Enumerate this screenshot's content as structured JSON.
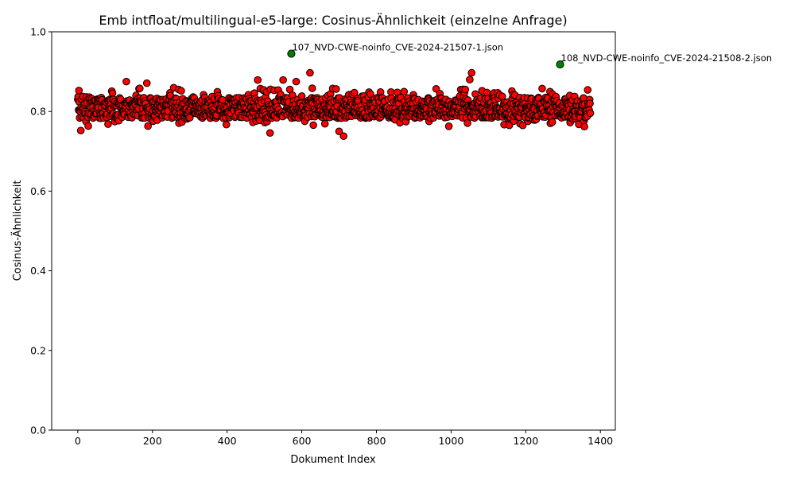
{
  "chart_data": {
    "type": "scatter",
    "title": "Emb intfloat/multilingual-e5-large: Cosinus-Ähnlichkeit (einzelne Anfrage)",
    "xlabel": "Dokument Index",
    "ylabel": "Cosinus-Ähnlichkeit",
    "xlim": [
      -70,
      1440
    ],
    "ylim": [
      0.0,
      1.0
    ],
    "xticks": [
      0,
      200,
      400,
      600,
      800,
      1000,
      1200,
      1400
    ],
    "yticks": [
      0.0,
      0.2,
      0.4,
      0.6,
      0.8,
      1.0
    ],
    "xtick_labels": [
      "0",
      "200",
      "400",
      "600",
      "800",
      "1000",
      "1200",
      "1400"
    ],
    "ytick_labels": [
      "0.0",
      "0.2",
      "0.4",
      "0.6",
      "0.8",
      "1.0"
    ],
    "grid": false,
    "colors": {
      "default_points": "#ff0000",
      "highlight_points": "#008000",
      "edge": "#000000"
    },
    "highlighted": [
      {
        "x": 572,
        "y": 0.945,
        "label": "107_NVD-CWE-noinfo_CVE-2024-21507-1.json"
      },
      {
        "x": 1292,
        "y": 0.918,
        "label": "108_NVD-CWE-noinfo_CVE-2024-21508-2.json"
      }
    ],
    "point_count": 1374,
    "y_range_main": [
      0.74,
      0.9
    ],
    "notable_points": [
      {
        "x": 8,
        "y": 0.752
      },
      {
        "x": 130,
        "y": 0.875
      },
      {
        "x": 185,
        "y": 0.871
      },
      {
        "x": 482,
        "y": 0.879
      },
      {
        "x": 515,
        "y": 0.746
      },
      {
        "x": 550,
        "y": 0.879
      },
      {
        "x": 585,
        "y": 0.875
      },
      {
        "x": 622,
        "y": 0.897
      },
      {
        "x": 700,
        "y": 0.75
      },
      {
        "x": 712,
        "y": 0.738
      },
      {
        "x": 1050,
        "y": 0.88
      },
      {
        "x": 1055,
        "y": 0.897
      },
      {
        "x": 1357,
        "y": 0.762
      }
    ]
  }
}
